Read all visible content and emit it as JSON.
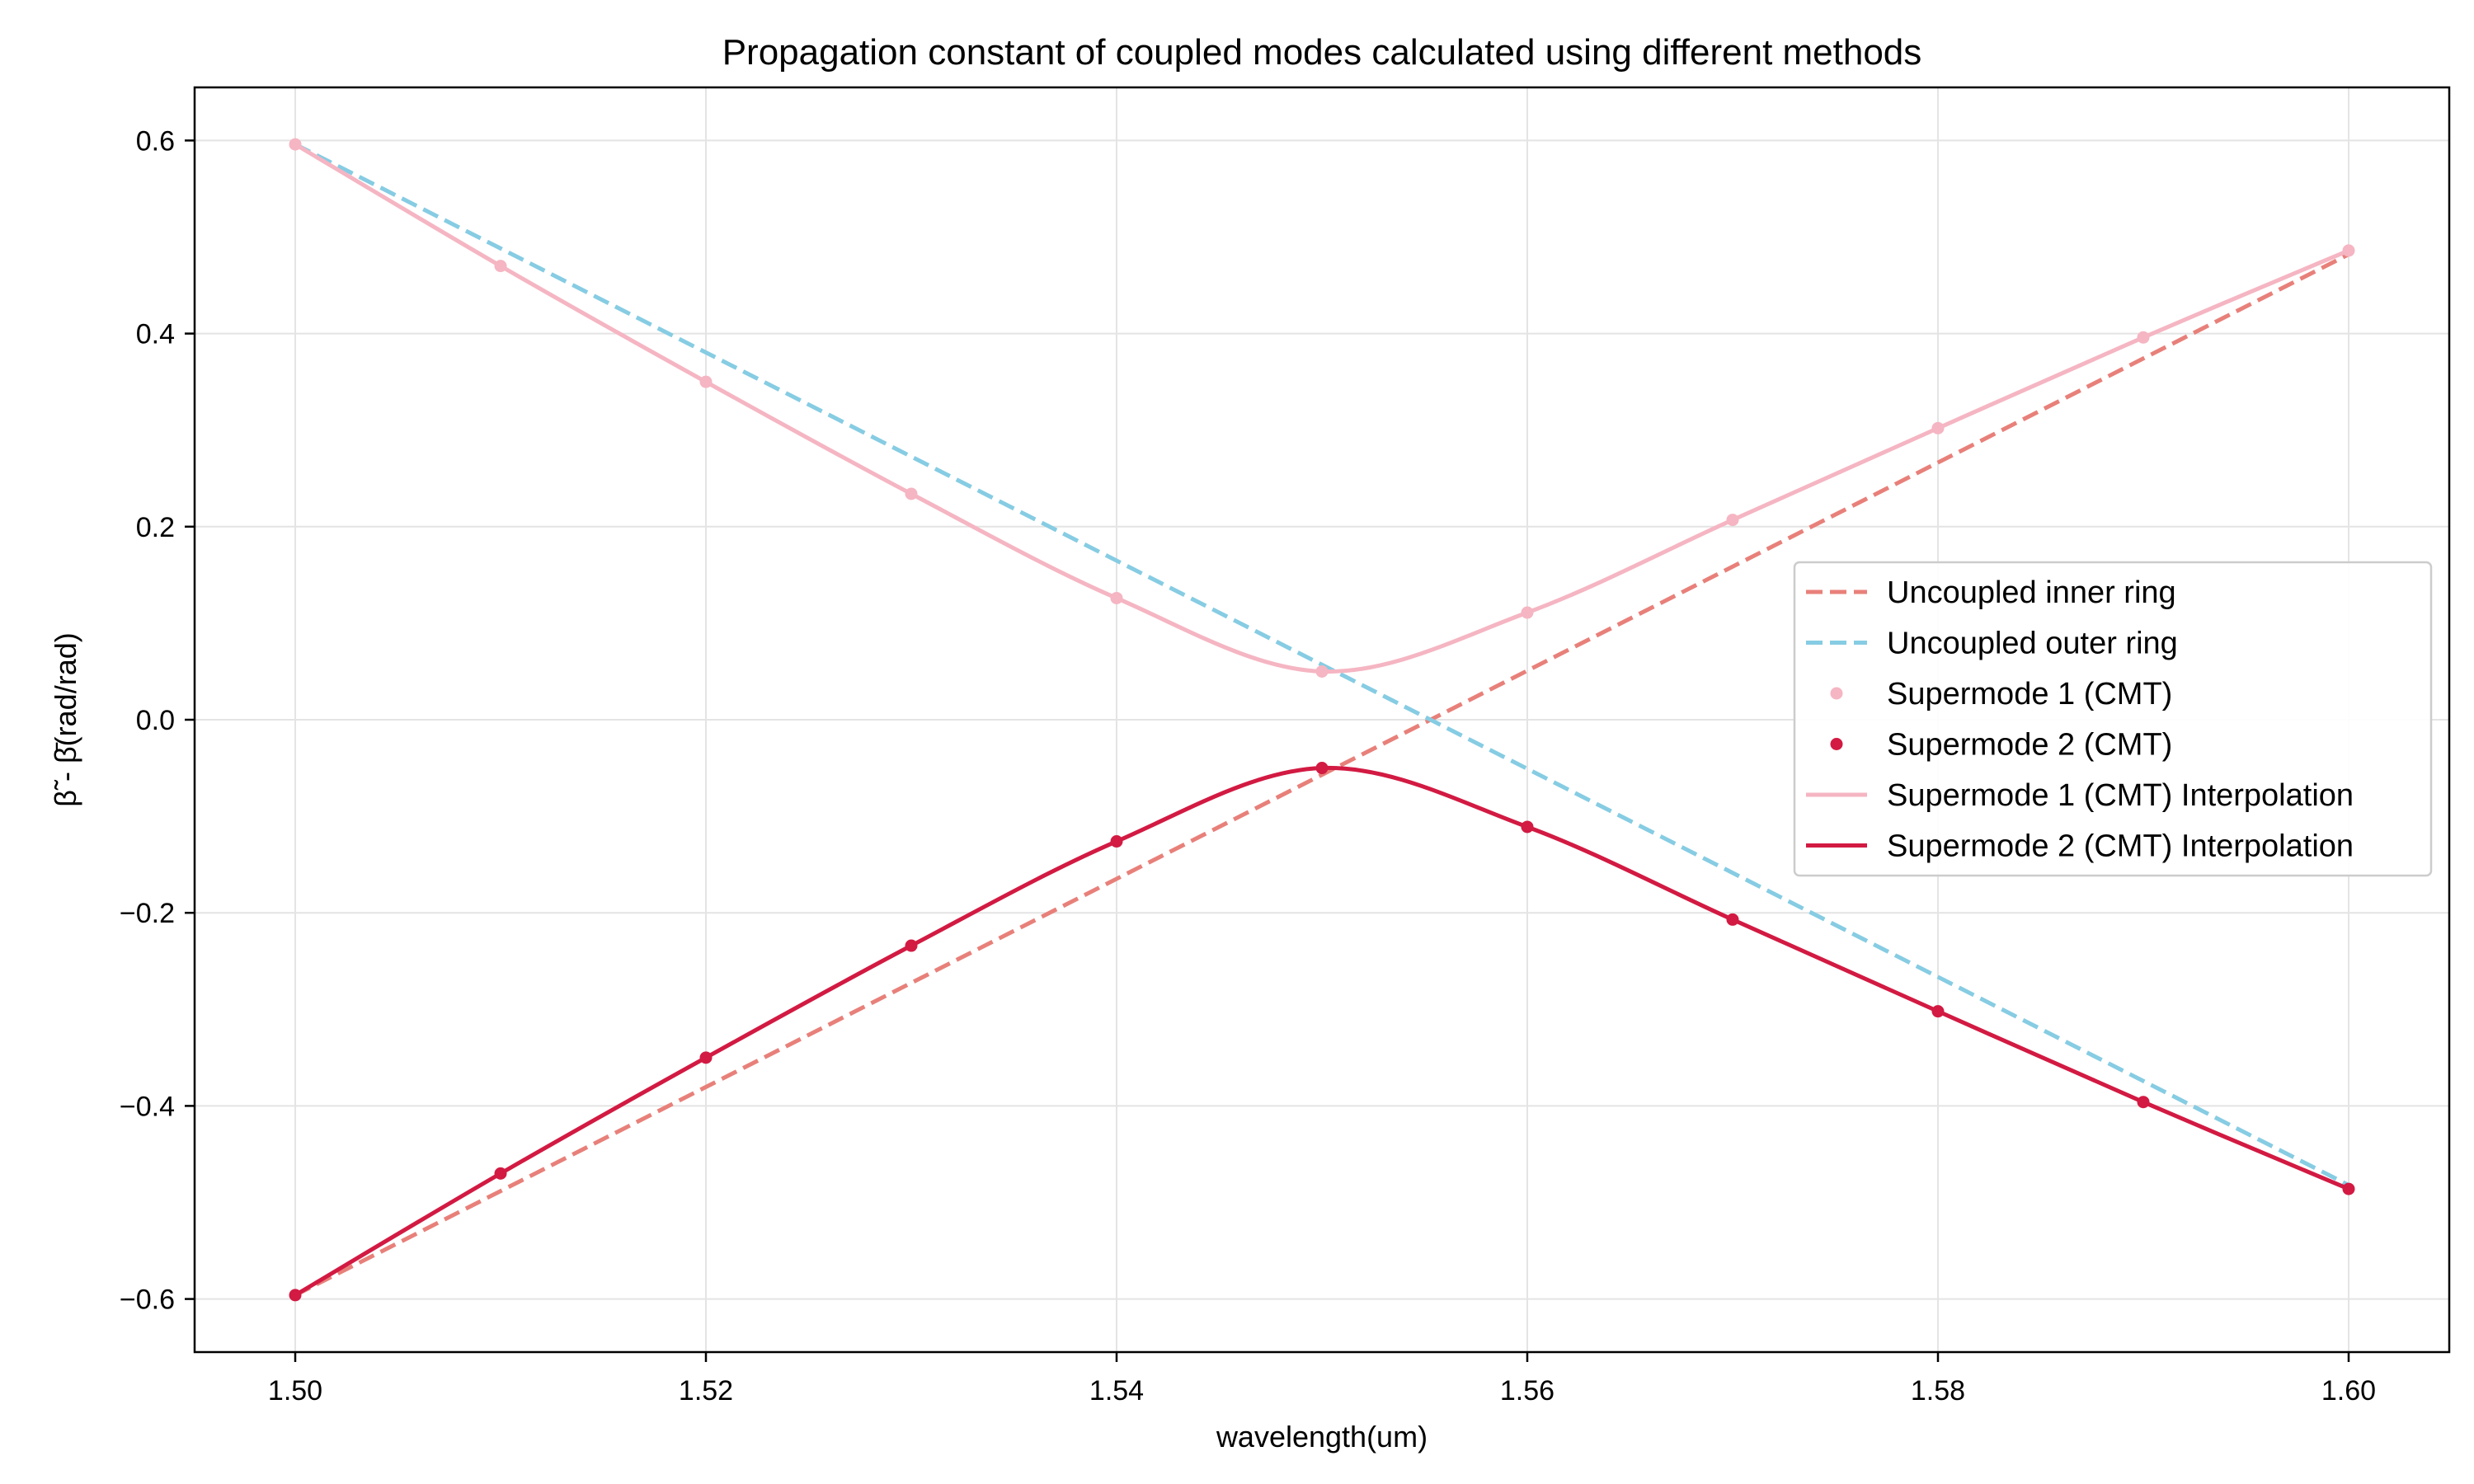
{
  "chart_data": {
    "type": "line",
    "title": "Propagation constant of coupled modes calculated using different methods",
    "xlabel": "wavelength(um)",
    "ylabel": "β̃ - β̄(rad/rad)",
    "xlim": [
      1.4951,
      1.6049
    ],
    "ylim": [
      -0.655,
      0.655
    ],
    "grid": true,
    "legend_position": "center-right",
    "x_ticks": [
      1.5,
      1.52,
      1.54,
      1.56,
      1.58,
      1.6
    ],
    "x_tick_labels": [
      "1.50",
      "1.52",
      "1.54",
      "1.56",
      "1.58",
      "1.60"
    ],
    "y_ticks": [
      -0.6,
      -0.4,
      -0.2,
      0.0,
      0.2,
      0.4,
      0.6
    ],
    "y_tick_labels": [
      "−0.6",
      "−0.4",
      "−0.2",
      "0.0",
      "0.2",
      "0.4",
      "0.6"
    ],
    "x": [
      1.5,
      1.51,
      1.52,
      1.53,
      1.54,
      1.55,
      1.56,
      1.57,
      1.58,
      1.59,
      1.6
    ],
    "series": [
      {
        "name": "Uncoupled inner ring",
        "style": "dashed",
        "color": "#e8807a",
        "x": [
          1.5,
          1.6
        ],
        "values": [
          -0.596,
          0.482
        ]
      },
      {
        "name": "Uncoupled outer ring",
        "style": "dashed",
        "color": "#86cce3",
        "x": [
          1.5,
          1.6
        ],
        "values": [
          0.596,
          -0.482
        ]
      },
      {
        "name": "Supermode 1 (CMT)",
        "style": "markers",
        "color": "#f5b5c2",
        "values": [
          0.596,
          0.47,
          0.35,
          0.234,
          0.126,
          0.05,
          0.111,
          0.207,
          0.302,
          0.396,
          0.486
        ]
      },
      {
        "name": "Supermode 2 (CMT)",
        "style": "markers",
        "color": "#d21a42",
        "values": [
          -0.596,
          -0.47,
          -0.35,
          -0.234,
          -0.126,
          -0.05,
          -0.111,
          -0.207,
          -0.302,
          -0.396,
          -0.486
        ]
      },
      {
        "name": "Supermode 1 (CMT) Interpolation",
        "style": "solid",
        "color": "#f5b5c2",
        "values": [
          0.596,
          0.47,
          0.35,
          0.234,
          0.126,
          0.05,
          0.111,
          0.207,
          0.302,
          0.396,
          0.486
        ]
      },
      {
        "name": "Supermode 2 (CMT) Interpolation",
        "style": "solid",
        "color": "#d21a42",
        "values": [
          -0.596,
          -0.47,
          -0.35,
          -0.234,
          -0.126,
          -0.05,
          -0.111,
          -0.207,
          -0.302,
          -0.396,
          -0.486
        ]
      }
    ]
  }
}
